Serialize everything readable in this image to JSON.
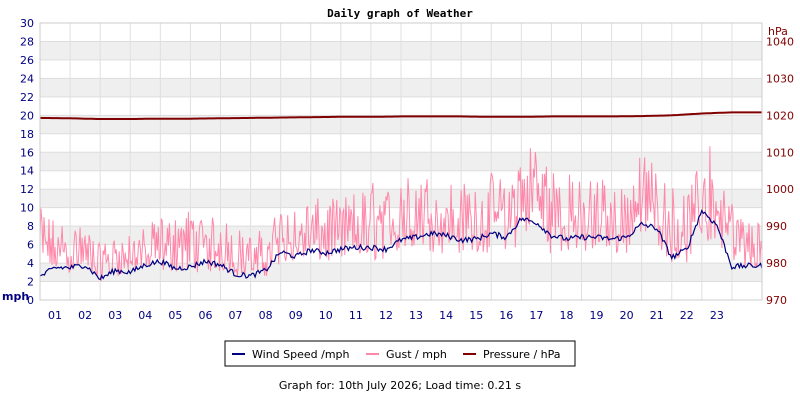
{
  "chart_data": {
    "type": "line",
    "title": "Daily graph of Weather",
    "y_left": {
      "unit": "mph",
      "min": 0,
      "max": 30,
      "ticks": [
        "0",
        "2",
        "4",
        "6",
        "8",
        "10",
        "12",
        "14",
        "16",
        "18",
        "20",
        "22",
        "24",
        "26",
        "28",
        "30"
      ]
    },
    "y_right": {
      "unit": "hPa",
      "min": 970,
      "max": 1045,
      "ticks": [
        "970",
        "980",
        "990",
        "1000",
        "1010",
        "1020",
        "1030",
        "1040"
      ]
    },
    "x_ticks": [
      "01",
      "02",
      "03",
      "04",
      "05",
      "06",
      "07",
      "08",
      "09",
      "10",
      "11",
      "12",
      "13",
      "14",
      "15",
      "16",
      "17",
      "18",
      "19",
      "20",
      "21",
      "22",
      "23"
    ],
    "x_range": [
      0,
      24
    ],
    "grid": true,
    "legend_placement": "bottom",
    "series": [
      {
        "name": "Wind Speed /mph",
        "axis": "left",
        "color": "#000080",
        "x": [
          0,
          0.5,
          1,
          1.5,
          2,
          2.5,
          3,
          3.5,
          4,
          4.5,
          5,
          5.5,
          6,
          6.5,
          7,
          7.5,
          8,
          8.5,
          9,
          9.5,
          10,
          10.5,
          11,
          11.5,
          12,
          12.5,
          13,
          13.5,
          14,
          14.5,
          15,
          15.5,
          16,
          16.5,
          17,
          17.5,
          18,
          18.5,
          19,
          19.5,
          20,
          20.5,
          21,
          21.5,
          22,
          22.5,
          23,
          23.5
        ],
        "values": [
          2.5,
          3.5,
          3.5,
          3.8,
          2.3,
          3.2,
          3.0,
          3.8,
          4.2,
          3.4,
          3.6,
          4.2,
          3.8,
          2.8,
          2.6,
          3.2,
          5.2,
          4.7,
          5.4,
          5.1,
          5.5,
          5.7,
          5.7,
          5.5,
          6.5,
          6.8,
          7.2,
          7.0,
          6.5,
          6.6,
          7.2,
          6.8,
          8.8,
          8.4,
          7.0,
          6.6,
          6.8,
          6.8,
          6.6,
          6.8,
          8.2,
          7.8,
          4.6,
          5.5,
          9.7,
          8.1,
          3.6,
          3.7
        ]
      },
      {
        "name": "Gust / mph",
        "axis": "left",
        "color": "#ff88aa",
        "x": [
          0,
          0.5,
          1,
          1.5,
          2,
          2.5,
          3,
          3.5,
          4,
          4.5,
          5,
          5.5,
          6,
          6.5,
          7,
          7.5,
          8,
          8.5,
          9,
          9.5,
          10,
          10.5,
          11,
          11.5,
          12,
          12.5,
          13,
          13.5,
          14,
          14.5,
          15,
          15.5,
          16,
          16.5,
          17,
          17.5,
          18,
          18.5,
          19,
          19.5,
          20,
          20.5,
          21,
          21.5,
          22,
          22.5,
          23,
          23.5
        ],
        "low": [
          3,
          3,
          3,
          3,
          2,
          2.5,
          3,
          3,
          3,
          3,
          3,
          3,
          3,
          2.5,
          2.5,
          2.5,
          4,
          4,
          4,
          4,
          4,
          4,
          4,
          4.5,
          5,
          5,
          5,
          5,
          5,
          5,
          5,
          5,
          6,
          6,
          5,
          5,
          5,
          5,
          5,
          5,
          6,
          6,
          4,
          4,
          6,
          6,
          3,
          3
        ],
        "high": [
          10,
          9,
          8,
          8,
          6,
          7,
          7,
          8,
          9,
          9,
          10,
          9,
          9,
          8,
          7,
          8,
          10,
          10,
          11,
          11,
          11,
          12,
          13,
          12,
          14,
          13,
          14,
          13,
          13,
          12,
          14,
          13,
          17,
          18,
          15,
          14,
          13,
          14,
          13,
          13,
          16,
          15,
          13,
          11,
          18,
          16,
          11,
          9
        ]
      },
      {
        "name": "Pressure / hPa",
        "axis": "right",
        "color": "#800000",
        "x": [
          0,
          1,
          2,
          3,
          4,
          5,
          6,
          7,
          8,
          9,
          10,
          11,
          12,
          13,
          14,
          15,
          16,
          17,
          18,
          19,
          20,
          21,
          22,
          23,
          24
        ],
        "values": [
          1019.3,
          1019.2,
          1019.0,
          1019.0,
          1019.1,
          1019.1,
          1019.2,
          1019.3,
          1019.4,
          1019.5,
          1019.6,
          1019.6,
          1019.7,
          1019.7,
          1019.7,
          1019.6,
          1019.6,
          1019.7,
          1019.7,
          1019.7,
          1019.8,
          1020.0,
          1020.5,
          1020.8,
          1020.8
        ]
      }
    ]
  },
  "footer": "Graph for: 10th July 2026; Load time: 0.21 s"
}
